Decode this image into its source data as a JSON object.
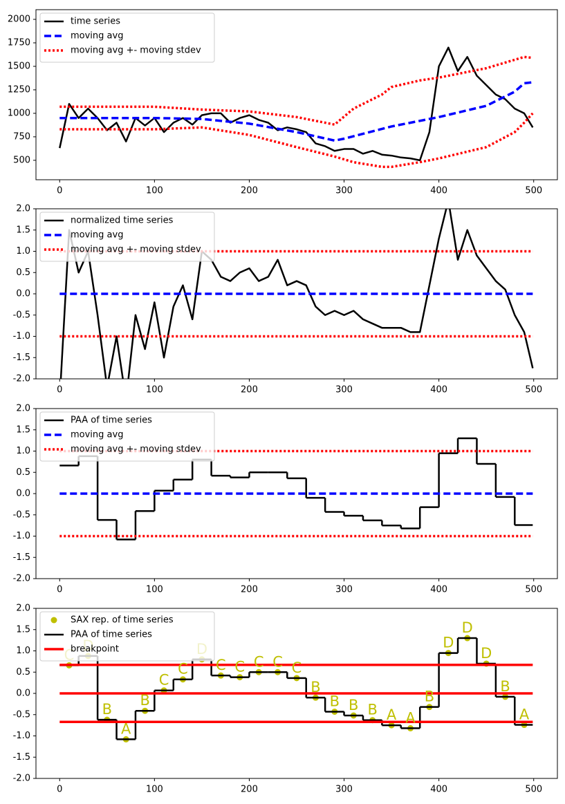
{
  "chart_data": [
    {
      "type": "line",
      "xlim": [
        -25,
        525
      ],
      "xticks": [
        0,
        100,
        200,
        300,
        400,
        500
      ],
      "ylim": [
        293,
        2103
      ],
      "yticks": [
        500,
        750,
        1000,
        1250,
        1500,
        1750,
        2000
      ],
      "series": [
        {
          "name": "time series",
          "kind": "line",
          "color": "#000000",
          "style": "solid",
          "x": [
            0,
            10,
            20,
            30,
            40,
            50,
            60,
            70,
            80,
            90,
            100,
            110,
            120,
            130,
            140,
            150,
            160,
            170,
            180,
            190,
            200,
            210,
            220,
            230,
            240,
            250,
            260,
            270,
            280,
            290,
            300,
            310,
            320,
            330,
            340,
            350,
            360,
            370,
            380,
            390,
            400,
            410,
            420,
            430,
            440,
            450,
            460,
            470,
            480,
            490,
            499
          ],
          "values": [
            630,
            1100,
            950,
            1050,
            950,
            820,
            900,
            700,
            950,
            870,
            950,
            800,
            900,
            950,
            880,
            980,
            1000,
            1000,
            900,
            950,
            980,
            930,
            900,
            820,
            850,
            830,
            800,
            680,
            650,
            600,
            620,
            620,
            570,
            600,
            560,
            550,
            530,
            520,
            500,
            800,
            1500,
            1700,
            1450,
            1600,
            1400,
            1300,
            1200,
            1150,
            1050,
            1000,
            850
          ]
        },
        {
          "name": "moving avg",
          "kind": "line",
          "color": "#0000ff",
          "style": "dashed",
          "x": [
            0,
            50,
            100,
            150,
            200,
            250,
            290,
            300,
            350,
            400,
            450,
            480,
            490,
            499
          ],
          "values": [
            950,
            950,
            950,
            940,
            890,
            800,
            710,
            730,
            860,
            960,
            1080,
            1230,
            1320,
            1330
          ]
        },
        {
          "name": "moving avg +- moving stdev",
          "kind": "band",
          "color": "#ff0000",
          "style": "dotted",
          "x": [
            0,
            100,
            150,
            200,
            250,
            290,
            310,
            340,
            350,
            380,
            400,
            450,
            480,
            490,
            499
          ],
          "upper": [
            1070,
            1070,
            1040,
            1020,
            960,
            880,
            1050,
            1200,
            1280,
            1350,
            1380,
            1480,
            1570,
            1600,
            1590
          ],
          "lower": [
            830,
            830,
            850,
            770,
            640,
            540,
            480,
            430,
            430,
            480,
            520,
            640,
            800,
            900,
            1000
          ]
        }
      ]
    },
    {
      "type": "line",
      "xlim": [
        -25,
        525
      ],
      "xticks": [
        0,
        100,
        200,
        300,
        400,
        500
      ],
      "ylim": [
        -2,
        2
      ],
      "yticks": [
        -2.0,
        -1.5,
        -1.0,
        -0.5,
        0.0,
        0.5,
        1.0,
        1.5,
        2.0
      ],
      "series": [
        {
          "name": "normalized time series",
          "kind": "line",
          "color": "#000000",
          "style": "solid",
          "x": [
            0,
            10,
            20,
            30,
            40,
            50,
            60,
            70,
            80,
            90,
            100,
            110,
            120,
            130,
            140,
            150,
            160,
            170,
            180,
            190,
            200,
            210,
            220,
            230,
            240,
            250,
            260,
            270,
            280,
            290,
            300,
            310,
            320,
            330,
            340,
            350,
            360,
            370,
            380,
            390,
            400,
            410,
            420,
            430,
            440,
            450,
            460,
            470,
            480,
            490,
            499
          ],
          "values": [
            -2.5,
            1.5,
            0.5,
            1.0,
            -0.5,
            -2.2,
            -1.0,
            -2.5,
            -0.5,
            -1.3,
            -0.2,
            -1.5,
            -0.3,
            0.2,
            -0.6,
            1.0,
            0.8,
            0.4,
            0.3,
            0.5,
            0.6,
            0.3,
            0.4,
            0.8,
            0.2,
            0.3,
            0.2,
            -0.3,
            -0.5,
            -0.4,
            -0.5,
            -0.4,
            -0.6,
            -0.7,
            -0.8,
            -0.8,
            -0.8,
            -0.9,
            -0.9,
            0.2,
            1.3,
            2.2,
            0.8,
            1.5,
            0.9,
            0.6,
            0.3,
            0.1,
            -0.5,
            -0.9,
            -1.75
          ]
        },
        {
          "name": "moving avg",
          "kind": "line",
          "color": "#0000ff",
          "style": "dashed",
          "x": [
            0,
            499
          ],
          "values": [
            0,
            0
          ]
        },
        {
          "name": "moving avg +- moving stdev",
          "kind": "band",
          "color": "#ff0000",
          "style": "dotted",
          "x": [
            0,
            499
          ],
          "upper": [
            1,
            1
          ],
          "lower": [
            -1,
            -1
          ]
        }
      ]
    },
    {
      "type": "line",
      "xlim": [
        -25,
        525
      ],
      "xticks": [
        0,
        100,
        200,
        300,
        400,
        500
      ],
      "ylim": [
        -2,
        2
      ],
      "yticks": [
        -2.0,
        -1.5,
        -1.0,
        -0.5,
        0.0,
        0.5,
        1.0,
        1.5,
        2.0
      ],
      "series": [
        {
          "name": "PAA of time series",
          "kind": "step",
          "color": "#000000",
          "style": "solid",
          "edges": [
            0,
            20,
            40,
            60,
            80,
            100,
            120,
            140,
            160,
            180,
            200,
            220,
            240,
            260,
            280,
            300,
            320,
            340,
            360,
            380,
            400,
            420,
            440,
            460,
            480,
            499
          ],
          "values": [
            0.66,
            0.88,
            -0.62,
            -1.08,
            -0.41,
            0.07,
            0.33,
            0.8,
            0.42,
            0.38,
            0.5,
            0.5,
            0.36,
            -0.1,
            -0.43,
            -0.52,
            -0.63,
            -0.75,
            -0.82,
            -0.32,
            0.95,
            1.3,
            0.7,
            -0.08,
            -0.74
          ]
        },
        {
          "name": "moving avg",
          "kind": "line",
          "color": "#0000ff",
          "style": "dashed",
          "x": [
            0,
            499
          ],
          "values": [
            0,
            0
          ]
        },
        {
          "name": "moving avg +- moving stdev",
          "kind": "band",
          "color": "#ff0000",
          "style": "dotted",
          "x": [
            0,
            499
          ],
          "upper": [
            1,
            1
          ],
          "lower": [
            -1,
            -1
          ]
        }
      ]
    },
    {
      "type": "line",
      "xlim": [
        -25,
        525
      ],
      "xticks": [
        0,
        100,
        200,
        300,
        400,
        500
      ],
      "ylim": [
        -2,
        2
      ],
      "yticks": [
        -2.0,
        -1.5,
        -1.0,
        -0.5,
        0.0,
        0.5,
        1.0,
        1.5,
        2.0
      ],
      "series": [
        {
          "name": "SAX rep. of time series",
          "kind": "points",
          "color": "#bfbf00",
          "x": [
            10,
            30,
            50,
            70,
            90,
            110,
            130,
            150,
            170,
            190,
            210,
            230,
            250,
            270,
            290,
            310,
            330,
            350,
            370,
            390,
            410,
            430,
            450,
            470,
            490
          ],
          "values": [
            0.66,
            0.88,
            -0.62,
            -1.08,
            -0.41,
            0.07,
            0.33,
            0.8,
            0.42,
            0.38,
            0.5,
            0.5,
            0.36,
            -0.1,
            -0.43,
            -0.52,
            -0.63,
            -0.75,
            -0.82,
            -0.32,
            0.95,
            1.3,
            0.7,
            -0.08,
            -0.74
          ],
          "labels": [
            "C",
            "D",
            "B",
            "A",
            "B",
            "C",
            "C",
            "D",
            "C",
            "C",
            "C",
            "C",
            "C",
            "B",
            "B",
            "B",
            "B",
            "A",
            "A",
            "B",
            "D",
            "D",
            "D",
            "B",
            "A"
          ]
        },
        {
          "name": "PAA of time series",
          "kind": "step",
          "color": "#000000",
          "style": "solid",
          "edges": [
            0,
            20,
            40,
            60,
            80,
            100,
            120,
            140,
            160,
            180,
            200,
            220,
            240,
            260,
            280,
            300,
            320,
            340,
            360,
            380,
            400,
            420,
            440,
            460,
            480,
            499
          ],
          "values": [
            0.66,
            0.88,
            -0.62,
            -1.08,
            -0.41,
            0.07,
            0.33,
            0.8,
            0.42,
            0.38,
            0.5,
            0.5,
            0.36,
            -0.1,
            -0.43,
            -0.52,
            -0.63,
            -0.75,
            -0.82,
            -0.32,
            0.95,
            1.3,
            0.7,
            -0.08,
            -0.74
          ]
        },
        {
          "name": "breakpoint",
          "kind": "hline",
          "color": "#ff0000",
          "style": "solid",
          "xrange": [
            0,
            499
          ],
          "levels": [
            0.67,
            0,
            -0.67
          ]
        }
      ]
    }
  ]
}
